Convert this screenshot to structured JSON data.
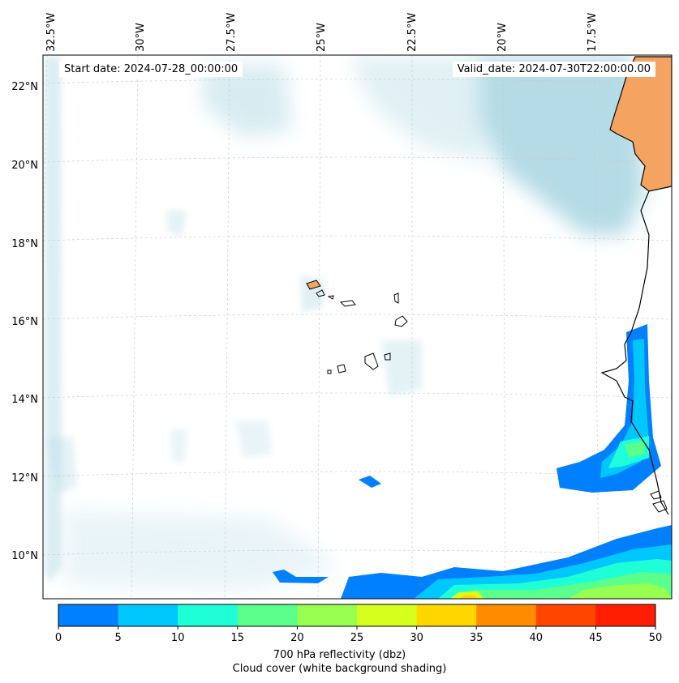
{
  "map": {
    "start_date": "Start date: 2024-07-28_00:00:00",
    "valid_date": "Valid_date: 2024-07-30T22:00:00.00",
    "lon_labels": [
      "32.5°W",
      "30°W",
      "27.5°W",
      "25°W",
      "22.5°W",
      "20°W",
      "17.5°W"
    ],
    "lat_labels": [
      "22°N",
      "20°N",
      "18°N",
      "16°N",
      "14°N",
      "12°N",
      "10°N"
    ],
    "gridlines": true,
    "region": "Cape Verde Islands and West African coast",
    "land_color": "#f4a460"
  },
  "colorbar": {
    "ticks": [
      "0",
      "5",
      "10",
      "15",
      "20",
      "25",
      "30",
      "35",
      "40",
      "45",
      "50"
    ],
    "colors": [
      "#0080ff",
      "#00c8ff",
      "#1effd7",
      "#5aff8c",
      "#96ff50",
      "#d7ff1e",
      "#ffd700",
      "#ff8c00",
      "#ff4500",
      "#ff1e00"
    ],
    "label_line1": "700 hPa reflectivity (dbz)",
    "label_line2": "Cloud cover (white background shading)"
  }
}
